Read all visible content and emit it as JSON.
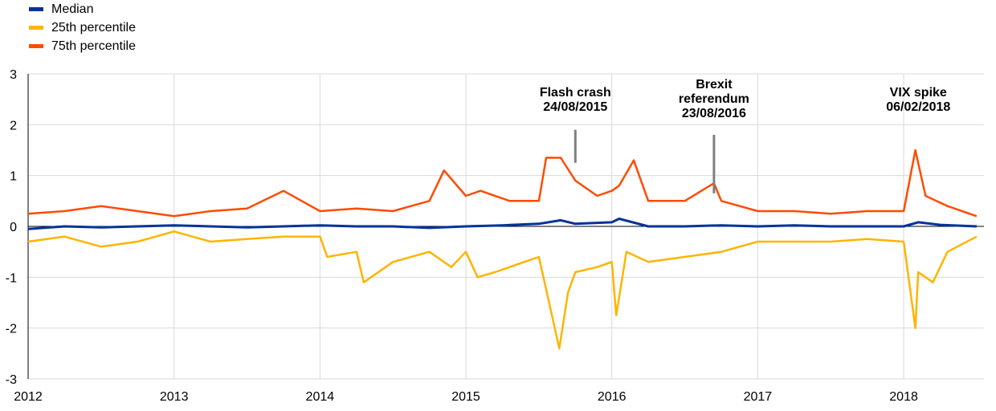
{
  "chart_data": {
    "type": "line",
    "title": "",
    "xlabel": "",
    "ylabel": "",
    "ylim": [
      -3,
      3
    ],
    "yticks": [
      3,
      2,
      1,
      0,
      -1,
      -2,
      -3
    ],
    "xlim": [
      2012.0,
      2018.55
    ],
    "xticks": [
      "2012",
      "2013",
      "2014",
      "2015",
      "2016",
      "2017",
      "2018"
    ],
    "grid": true,
    "legend_position": "top-left",
    "series": [
      {
        "name": "Median",
        "color": "#003399",
        "x": [
          2012.0,
          2012.25,
          2012.5,
          2012.75,
          2013.0,
          2013.25,
          2013.5,
          2013.75,
          2014.0,
          2014.25,
          2014.5,
          2014.75,
          2015.0,
          2015.25,
          2015.5,
          2015.65,
          2015.75,
          2016.0,
          2016.05,
          2016.25,
          2016.5,
          2016.75,
          2017.0,
          2017.25,
          2017.5,
          2017.75,
          2018.0,
          2018.1,
          2018.25,
          2018.5
        ],
        "values": [
          -0.05,
          0.0,
          -0.02,
          0.0,
          0.02,
          0.0,
          -0.02,
          0.0,
          0.02,
          0.0,
          0.0,
          -0.03,
          0.0,
          0.02,
          0.05,
          0.12,
          0.05,
          0.08,
          0.15,
          0.0,
          0.0,
          0.02,
          0.0,
          0.02,
          0.0,
          0.0,
          0.0,
          0.08,
          0.03,
          0.0
        ]
      },
      {
        "name": "25th percentile",
        "color": "#FFB400",
        "x": [
          2012.0,
          2012.25,
          2012.5,
          2012.75,
          2013.0,
          2013.25,
          2013.5,
          2013.75,
          2014.0,
          2014.05,
          2014.25,
          2014.3,
          2014.5,
          2014.75,
          2014.9,
          2015.0,
          2015.08,
          2015.2,
          2015.4,
          2015.5,
          2015.64,
          2015.7,
          2015.75,
          2015.9,
          2016.0,
          2016.03,
          2016.1,
          2016.25,
          2016.5,
          2016.75,
          2017.0,
          2017.25,
          2017.5,
          2017.75,
          2018.0,
          2018.08,
          2018.1,
          2018.2,
          2018.3,
          2018.5
        ],
        "values": [
          -0.3,
          -0.2,
          -0.4,
          -0.3,
          -0.1,
          -0.3,
          -0.25,
          -0.2,
          -0.2,
          -0.6,
          -0.5,
          -1.1,
          -0.7,
          -0.5,
          -0.8,
          -0.5,
          -1.0,
          -0.9,
          -0.7,
          -0.6,
          -2.4,
          -1.3,
          -0.9,
          -0.8,
          -0.7,
          -1.75,
          -0.5,
          -0.7,
          -0.6,
          -0.5,
          -0.3,
          -0.3,
          -0.3,
          -0.25,
          -0.3,
          -2.0,
          -0.9,
          -1.1,
          -0.5,
          -0.2
        ]
      },
      {
        "name": "75th percentile",
        "color": "#FF4B00",
        "x": [
          2012.0,
          2012.25,
          2012.5,
          2012.75,
          2013.0,
          2013.25,
          2013.5,
          2013.75,
          2014.0,
          2014.25,
          2014.5,
          2014.75,
          2014.85,
          2015.0,
          2015.1,
          2015.3,
          2015.5,
          2015.55,
          2015.65,
          2015.75,
          2015.9,
          2016.0,
          2016.05,
          2016.15,
          2016.25,
          2016.5,
          2016.7,
          2016.75,
          2017.0,
          2017.25,
          2017.5,
          2017.75,
          2018.0,
          2018.08,
          2018.15,
          2018.3,
          2018.5
        ],
        "values": [
          0.25,
          0.3,
          0.4,
          0.3,
          0.2,
          0.3,
          0.35,
          0.7,
          0.3,
          0.35,
          0.3,
          0.5,
          1.1,
          0.6,
          0.7,
          0.5,
          0.5,
          1.35,
          1.35,
          0.9,
          0.6,
          0.7,
          0.8,
          1.3,
          0.5,
          0.5,
          0.85,
          0.5,
          0.3,
          0.3,
          0.25,
          0.3,
          0.3,
          1.5,
          0.6,
          0.4,
          0.2
        ]
      }
    ],
    "annotations": [
      {
        "lines": [
          "Flash crash",
          "24/08/2015"
        ],
        "x": 2015.75,
        "marker_top": 1.9,
        "marker_bottom": 1.25
      },
      {
        "lines": [
          "Brexit",
          "referendum",
          "23/08/2016"
        ],
        "x": 2016.7,
        "marker_top": 1.8,
        "marker_bottom": 0.65
      },
      {
        "lines": [
          "VIX spike",
          "06/02/2018"
        ],
        "x": 2018.1
      }
    ]
  }
}
